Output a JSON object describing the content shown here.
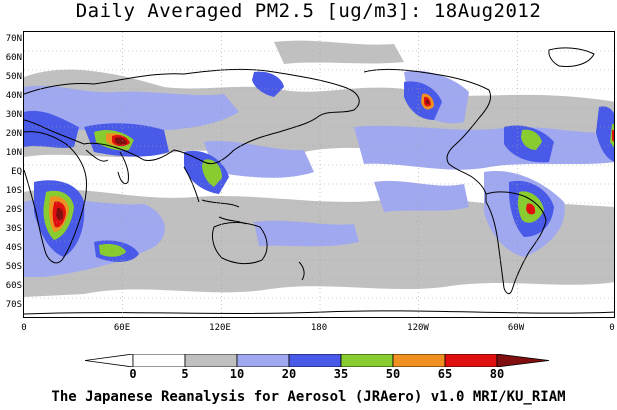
{
  "title": "Daily Averaged PM2.5 [ug/m3]: 18Aug2012",
  "credit": "The Japanese Reanalysis for Aerosol (JRAero) v1.0 MRI/KU_RIAM",
  "lat_labels": [
    "70N",
    "60N",
    "50N",
    "40N",
    "30N",
    "20N",
    "10N",
    "EQ",
    "10S",
    "20S",
    "30S",
    "40S",
    "50S",
    "60S",
    "70S"
  ],
  "lon_labels": [
    "0",
    "60E",
    "120E",
    "180",
    "120W",
    "60W",
    "0"
  ],
  "legend": {
    "breaks": [
      "0",
      "5",
      "10",
      "20",
      "35",
      "50",
      "65",
      "80"
    ],
    "colors": [
      "#ffffff",
      "#c0c0c0",
      "#a0a8f0",
      "#4a5ae8",
      "#88cc30",
      "#f09020",
      "#e01010",
      "#801010"
    ]
  },
  "colors": {
    "land_outline": "#000000",
    "grid": "#a0a0a0"
  }
}
